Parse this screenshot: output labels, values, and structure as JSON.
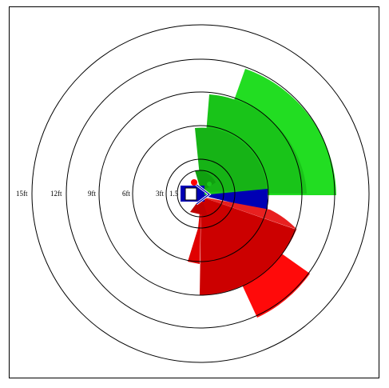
{
  "rings": [
    {
      "label": "1.5",
      "feet": 1.5
    },
    {
      "label": "3ft",
      "feet": 3
    },
    {
      "label": "6ft",
      "feet": 6
    },
    {
      "label": "9ft",
      "feet": 9
    },
    {
      "label": "12ft",
      "feet": 12
    },
    {
      "label": "15ft",
      "feet": 15
    }
  ],
  "colors": {
    "green": "#19c419",
    "green_light": "#22dd22",
    "green_dark": "#16a816",
    "blue": "#0000b4",
    "red": "#e60000",
    "red_dark": "#b80000",
    "red_mid": "#d00000"
  }
}
